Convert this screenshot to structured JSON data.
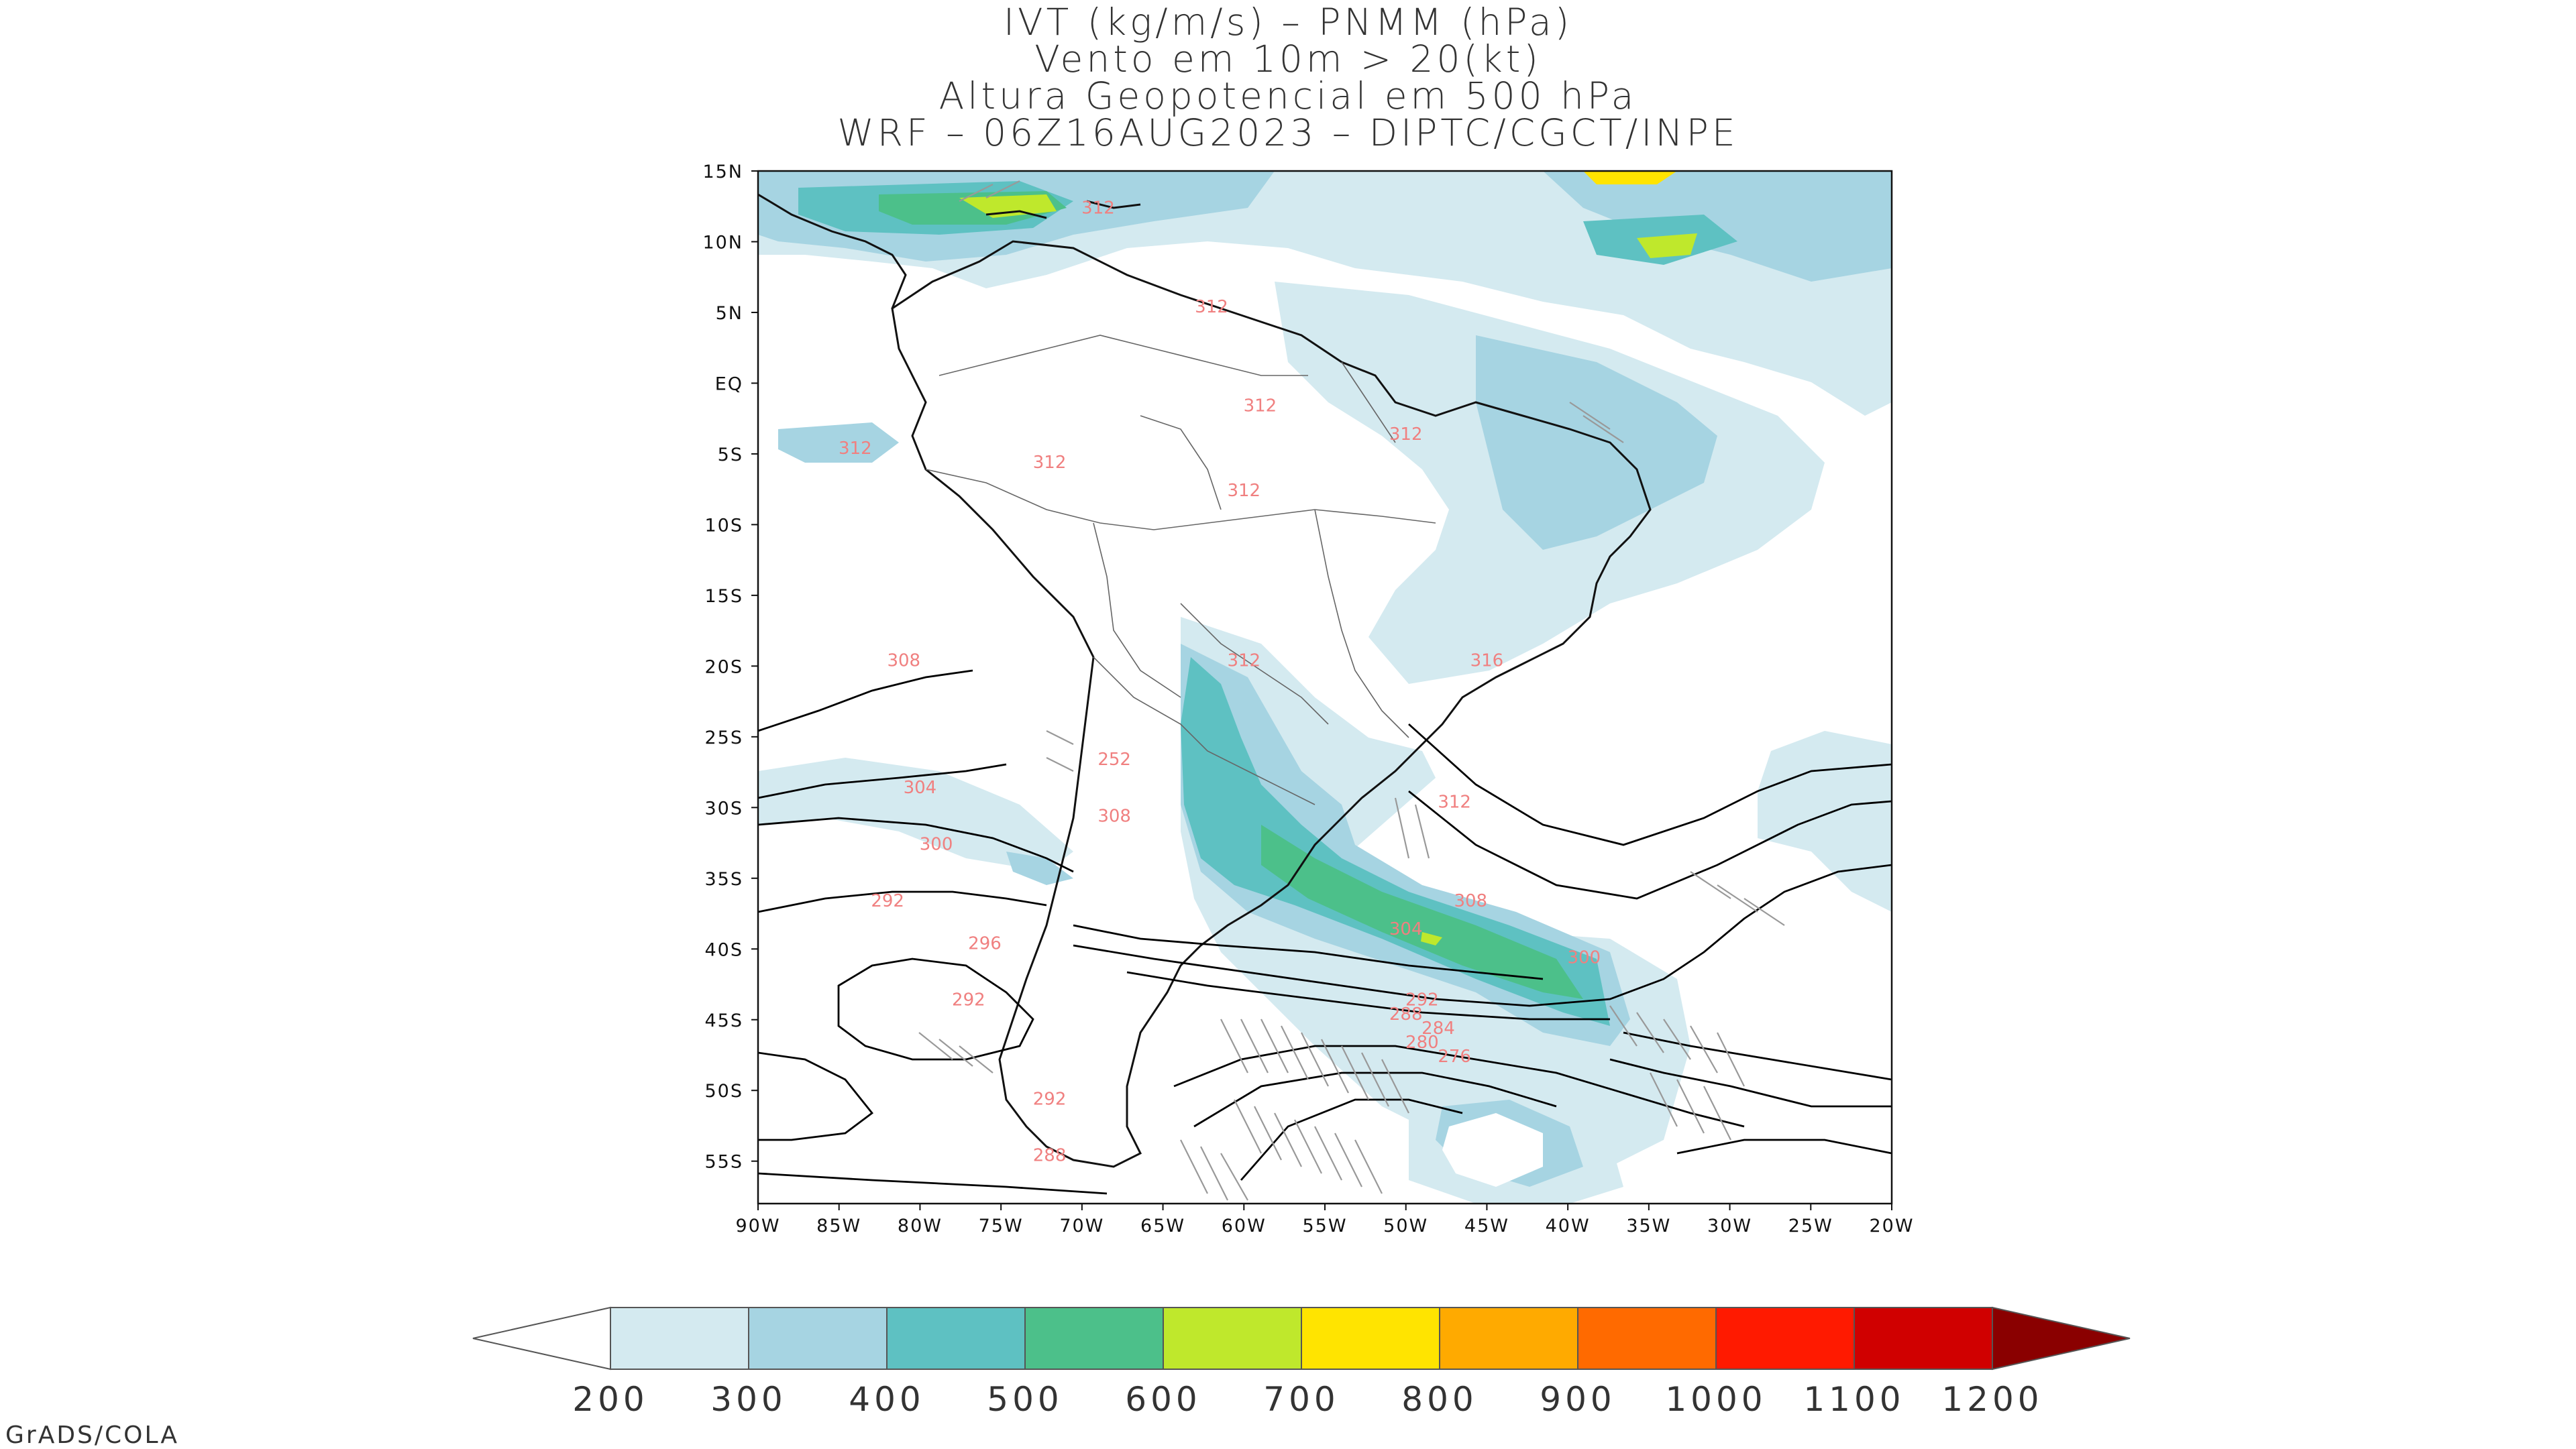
{
  "title": {
    "line1": "IVT (kg/m/s) – PNMM (hPa)",
    "line2": "Vento em 10m > 20(kt)",
    "line3": "Altura Geopotencial em 500 hPa",
    "line4": "WRF – 06Z16AUG2023 – DIPTC/CGCT/INPE"
  },
  "map": {
    "lat_labels": [
      "15N",
      "10N",
      "5N",
      "EQ",
      "5S",
      "10S",
      "15S",
      "20S",
      "25S",
      "30S",
      "35S",
      "40S",
      "45S",
      "50S",
      "55S"
    ],
    "lon_labels": [
      "90W",
      "85W",
      "80W",
      "75W",
      "70W",
      "65W",
      "60W",
      "55W",
      "50W",
      "45W",
      "40W",
      "35W",
      "30W",
      "25W",
      "20W"
    ],
    "extent": {
      "lon": [
        -90,
        -20
      ],
      "lat": [
        -58,
        15
      ]
    },
    "ivt_colors": {
      "200": "#d4eaf0",
      "300": "#a6d4e2",
      "400": "#5ec1c2",
      "500": "#4cc08a",
      "600": "#bfe82c",
      "700": "#ffe400",
      "800": "#ffaa00",
      "900": "#ff6a00",
      "1000": "#ff1a00",
      "1100": "#d00000",
      "1200": "#8a0000"
    },
    "contour_labels": [
      {
        "text": "312",
        "lon": -69,
        "lat": 12
      },
      {
        "text": "312",
        "lon": -62,
        "lat": 5
      },
      {
        "text": "312",
        "lon": -84,
        "lat": -5
      },
      {
        "text": "312",
        "lon": -72,
        "lat": -6
      },
      {
        "text": "312",
        "lon": -59,
        "lat": -2
      },
      {
        "text": "312",
        "lon": -50,
        "lat": -4
      },
      {
        "text": "312",
        "lon": -60,
        "lat": -8
      },
      {
        "text": "312",
        "lon": -60,
        "lat": -20
      },
      {
        "text": "316",
        "lon": -45,
        "lat": -20
      },
      {
        "text": "312",
        "lon": -47,
        "lat": -30
      },
      {
        "text": "308",
        "lon": -81,
        "lat": -20
      },
      {
        "text": "304",
        "lon": -80,
        "lat": -29
      },
      {
        "text": "300",
        "lon": -79,
        "lat": -33
      },
      {
        "text": "292",
        "lon": -82,
        "lat": -37
      },
      {
        "text": "308",
        "lon": -68,
        "lat": -31
      },
      {
        "text": "308",
        "lon": -46,
        "lat": -37
      },
      {
        "text": "304",
        "lon": -50,
        "lat": -39
      },
      {
        "text": "300",
        "lon": -39,
        "lat": -41
      },
      {
        "text": "296",
        "lon": -76,
        "lat": -40
      },
      {
        "text": "292",
        "lon": -49,
        "lat": -44
      },
      {
        "text": "288",
        "lon": -50,
        "lat": -45
      },
      {
        "text": "284",
        "lon": -48,
        "lat": -46
      },
      {
        "text": "280",
        "lon": -49,
        "lat": -47
      },
      {
        "text": "276",
        "lon": -47,
        "lat": -48
      },
      {
        "text": "292",
        "lon": -77,
        "lat": -44
      },
      {
        "text": "292",
        "lon": -72,
        "lat": -51
      },
      {
        "text": "288",
        "lon": -72,
        "lat": -55
      },
      {
        "text": "252",
        "lon": -68,
        "lat": -27
      }
    ]
  },
  "colorbar": {
    "labels": [
      "200",
      "300",
      "400",
      "500",
      "600",
      "700",
      "800",
      "900",
      "1000",
      "1100",
      "1200"
    ],
    "colors": [
      "#d4eaf0",
      "#a6d4e2",
      "#5ec1c2",
      "#4cc08a",
      "#bfe82c",
      "#ffe400",
      "#ffaa00",
      "#ff6a00",
      "#ff1a00",
      "#d00000"
    ],
    "over_color": "#8a0000",
    "under_color": "#ffffff"
  },
  "credit": "GrADS/COLA"
}
